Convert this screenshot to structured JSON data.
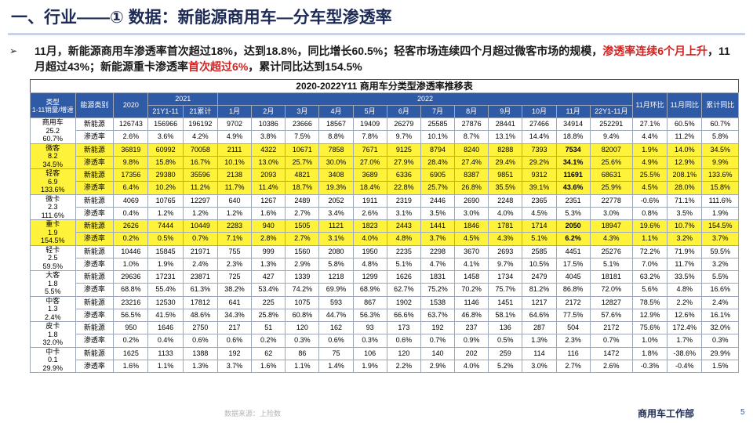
{
  "title": "一、行业——① 数据：新能源商用车—分车型渗透率",
  "summary": {
    "arrow": "➢",
    "part1": "11月，新能源商用车渗透率首次超过18%，达到18.8%，同比增长60.5%；轻客市场连续四个月超过微客市场的规模，",
    "part2_red": "渗透率连续6个月上升",
    "part3": "，11月超过43%；新能源重卡渗透率",
    "part4_red": "首次超过6%",
    "part5": "，累计同比达到154.5%"
  },
  "table": {
    "caption": "2020-2022Y11  商用车分类型渗透率推移表",
    "header": {
      "cat_line1": "类型",
      "cat_line2": "1-11销量/增速",
      "energy": "能源类别",
      "y2020": "2020",
      "y2021": "2021",
      "y2022": "2022",
      "h2021": [
        "21Y1-11",
        "21累计"
      ],
      "months": [
        "1月",
        "2月",
        "3月",
        "4月",
        "5月",
        "6月",
        "7月",
        "8月",
        "9月",
        "10月",
        "11月",
        "22Y1-11月"
      ],
      "tail": [
        "11月环比",
        "11月同比",
        "累计同比"
      ]
    },
    "groups": [
      {
        "name": "商用车",
        "vol": "25.2",
        "growth": "60.7%",
        "highlight": false,
        "ne": [
          "126743",
          "156966",
          "196192",
          "9702",
          "10386",
          "23666",
          "18567",
          "19409",
          "26279",
          "25585",
          "27876",
          "28441",
          "27466",
          "34914",
          "252291",
          "27.1%",
          "60.5%",
          "60.7%"
        ],
        "pen": [
          "2.6%",
          "3.6%",
          "4.2%",
          "4.9%",
          "3.8%",
          "7.5%",
          "8.8%",
          "7.8%",
          "9.7%",
          "10.1%",
          "8.7%",
          "13.1%",
          "14.4%",
          "18.8%",
          "9.4%",
          "4.4%",
          "11.2%",
          "5.8%"
        ]
      },
      {
        "name": "微客",
        "vol": "8.2",
        "growth": "34.5%",
        "highlight": true,
        "ne": [
          "36819",
          "60992",
          "70058",
          "2111",
          "4322",
          "10671",
          "7858",
          "7671",
          "9125",
          "8794",
          "8240",
          "8288",
          "7393",
          "7534",
          "82007",
          "1.9%",
          "14.0%",
          "34.5%"
        ],
        "pen": [
          "9.8%",
          "15.8%",
          "16.7%",
          "10.1%",
          "13.0%",
          "25.7%",
          "30.0%",
          "27.0%",
          "27.9%",
          "28.4%",
          "27.4%",
          "29.4%",
          "29.2%",
          "34.1%",
          "25.6%",
          "4.9%",
          "12.9%",
          "9.9%"
        ]
      },
      {
        "name": "轻客",
        "vol": "6.9",
        "growth": "133.6%",
        "highlight": true,
        "ne": [
          "17356",
          "29380",
          "35596",
          "2138",
          "2093",
          "4821",
          "3408",
          "3689",
          "6336",
          "6905",
          "8387",
          "9851",
          "9312",
          "11691",
          "68631",
          "25.5%",
          "208.1%",
          "133.6%"
        ],
        "pen": [
          "6.4%",
          "10.2%",
          "11.2%",
          "11.7%",
          "11.4%",
          "18.7%",
          "19.3%",
          "18.4%",
          "22.8%",
          "25.7%",
          "26.8%",
          "35.5%",
          "39.1%",
          "43.6%",
          "25.9%",
          "4.5%",
          "28.0%",
          "15.8%"
        ]
      },
      {
        "name": "微卡",
        "vol": "2.3",
        "growth": "111.6%",
        "highlight": false,
        "ne": [
          "4069",
          "10765",
          "12297",
          "640",
          "1267",
          "2489",
          "2052",
          "1911",
          "2319",
          "2446",
          "2690",
          "2248",
          "2365",
          "2351",
          "22778",
          "-0.6%",
          "71.1%",
          "111.6%"
        ],
        "pen": [
          "0.4%",
          "1.2%",
          "1.2%",
          "1.2%",
          "1.6%",
          "2.7%",
          "3.4%",
          "2.6%",
          "3.1%",
          "3.5%",
          "3.0%",
          "4.0%",
          "4.5%",
          "5.3%",
          "3.0%",
          "0.8%",
          "3.5%",
          "1.9%"
        ]
      },
      {
        "name": "重卡",
        "vol": "1.9",
        "growth": "154.5%",
        "highlight": true,
        "ne": [
          "2626",
          "7444",
          "10449",
          "2283",
          "940",
          "1505",
          "1121",
          "1823",
          "2443",
          "1441",
          "1846",
          "1781",
          "1714",
          "2050",
          "18947",
          "19.6%",
          "10.7%",
          "154.5%"
        ],
        "pen": [
          "0.2%",
          "0.5%",
          "0.7%",
          "7.1%",
          "2.8%",
          "2.7%",
          "3.1%",
          "4.0%",
          "4.8%",
          "3.7%",
          "4.5%",
          "4.3%",
          "5.1%",
          "6.2%",
          "4.3%",
          "1.1%",
          "3.2%",
          "3.7%"
        ]
      },
      {
        "name": "轻卡",
        "vol": "2.5",
        "growth": "59.5%",
        "highlight": false,
        "ne": [
          "10446",
          "15845",
          "21971",
          "755",
          "999",
          "1560",
          "2080",
          "1950",
          "2235",
          "2298",
          "3670",
          "2693",
          "2585",
          "4451",
          "25276",
          "72.2%",
          "71.9%",
          "59.5%"
        ],
        "pen": [
          "1.0%",
          "1.9%",
          "2.4%",
          "2.3%",
          "1.3%",
          "2.9%",
          "5.8%",
          "4.8%",
          "5.1%",
          "4.7%",
          "4.1%",
          "9.7%",
          "10.5%",
          "17.5%",
          "5.1%",
          "7.0%",
          "11.7%",
          "3.2%"
        ]
      },
      {
        "name": "大客",
        "vol": "1.8",
        "growth": "5.5%",
        "highlight": false,
        "ne": [
          "29636",
          "17231",
          "23871",
          "725",
          "427",
          "1339",
          "1218",
          "1299",
          "1626",
          "1831",
          "1458",
          "1734",
          "2479",
          "4045",
          "18181",
          "63.2%",
          "33.5%",
          "5.5%"
        ],
        "pen": [
          "68.8%",
          "55.4%",
          "61.3%",
          "38.2%",
          "53.4%",
          "74.2%",
          "69.9%",
          "68.9%",
          "62.7%",
          "75.2%",
          "70.2%",
          "75.7%",
          "81.2%",
          "86.8%",
          "72.0%",
          "5.6%",
          "4.8%",
          "16.6%"
        ]
      },
      {
        "name": "中客",
        "vol": "1.3",
        "growth": "2.4%",
        "highlight": false,
        "ne": [
          "23216",
          "12530",
          "17812",
          "641",
          "225",
          "1075",
          "593",
          "867",
          "1902",
          "1538",
          "1146",
          "1451",
          "1217",
          "2172",
          "12827",
          "78.5%",
          "2.2%",
          "2.4%"
        ],
        "pen": [
          "56.5%",
          "41.5%",
          "48.6%",
          "34.3%",
          "25.8%",
          "60.8%",
          "44.7%",
          "56.3%",
          "66.6%",
          "63.7%",
          "46.8%",
          "58.1%",
          "64.6%",
          "77.5%",
          "57.6%",
          "12.9%",
          "12.6%",
          "16.1%"
        ]
      },
      {
        "name": "皮卡",
        "vol": "1.8",
        "growth": "32.0%",
        "highlight": false,
        "ne": [
          "950",
          "1646",
          "2750",
          "217",
          "51",
          "120",
          "162",
          "93",
          "173",
          "192",
          "237",
          "136",
          "287",
          "504",
          "2172",
          "75.6%",
          "172.4%",
          "32.0%"
        ],
        "pen": [
          "0.2%",
          "0.4%",
          "0.6%",
          "0.6%",
          "0.2%",
          "0.3%",
          "0.6%",
          "0.3%",
          "0.6%",
          "0.7%",
          "0.9%",
          "0.5%",
          "1.3%",
          "2.3%",
          "0.7%",
          "1.0%",
          "1.7%",
          "0.3%"
        ]
      },
      {
        "name": "中卡",
        "vol": "0.1",
        "growth": "29.9%",
        "highlight": false,
        "ne": [
          "1625",
          "1133",
          "1388",
          "192",
          "62",
          "86",
          "75",
          "106",
          "120",
          "140",
          "202",
          "259",
          "114",
          "116",
          "1472",
          "1.8%",
          "-38.6%",
          "29.9%"
        ],
        "pen": [
          "1.6%",
          "1.1%",
          "1.3%",
          "3.7%",
          "1.6%",
          "1.1%",
          "1.4%",
          "1.9%",
          "2.2%",
          "2.9%",
          "4.0%",
          "5.2%",
          "3.0%",
          "2.7%",
          "2.6%",
          "-0.3%",
          "-0.4%",
          "1.5%"
        ]
      }
    ],
    "row_labels": {
      "ne": "新能源",
      "pen": "渗透率"
    }
  },
  "footer": {
    "source": "数据来源：上险数",
    "dept": "商用车工作部",
    "page": "5"
  },
  "colors": {
    "title": "#1c2a55",
    "header_bg": "#2f5aa5",
    "highlight_bg": "#fff23a",
    "emphasis_red": "#d22323"
  }
}
